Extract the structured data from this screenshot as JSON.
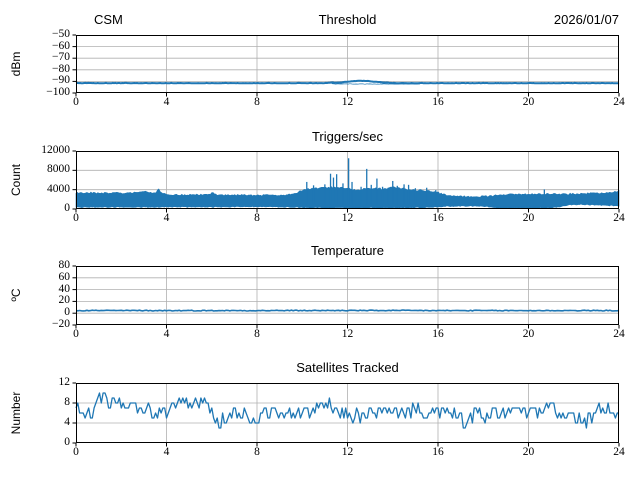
{
  "figure": {
    "background": "#ffffff"
  },
  "colors": {
    "line": "#1f77b4",
    "grid": "#b0b0b0",
    "frame": "#000000",
    "text": "#000000"
  },
  "chart_data": [
    {
      "type": "line",
      "title_left": "CSM",
      "title": "Threshold",
      "title_right": "2026/01/07",
      "ylabel": "dBm",
      "xlim": [
        0,
        24
      ],
      "ylim": [
        -100,
        -50
      ],
      "xticks": [
        0,
        4,
        8,
        12,
        16,
        20,
        24
      ],
      "yticks": [
        -100,
        -90,
        -80,
        -70,
        -60,
        -50
      ],
      "grid": true,
      "series": [
        {
          "name": "threshold-dbm",
          "width": 2,
          "noise": 0.18,
          "step": 0.06,
          "points": [
            [
              0,
              -91.5
            ],
            [
              10.9,
              -91.5
            ],
            [
              11.1,
              -91.3
            ],
            [
              11.3,
              -91.0
            ],
            [
              11.5,
              -91.1
            ],
            [
              11.7,
              -90.9
            ],
            [
              11.9,
              -90.5
            ],
            [
              12.1,
              -90.0
            ],
            [
              12.3,
              -89.7
            ],
            [
              12.5,
              -89.5
            ],
            [
              12.7,
              -89.6
            ],
            [
              12.9,
              -89.7
            ],
            [
              13.1,
              -90.0
            ],
            [
              13.3,
              -90.4
            ],
            [
              13.6,
              -90.9
            ],
            [
              13.9,
              -91.3
            ],
            [
              14.3,
              -91.5
            ],
            [
              24,
              -91.5
            ]
          ]
        },
        {
          "name": "threshold-undershoot",
          "width": 0.7,
          "noise": 0.18,
          "step": 0.06,
          "points": [
            [
              11.3,
              -92.1
            ],
            [
              13.0,
              -92.3
            ],
            [
              15.2,
              -92.2
            ]
          ]
        }
      ]
    },
    {
      "type": "line",
      "title": "Triggers/sec",
      "ylabel": "Count",
      "xlim": [
        0,
        24
      ],
      "ylim": [
        0,
        12000
      ],
      "xticks": [
        0,
        4,
        8,
        12,
        16,
        20,
        24
      ],
      "yticks": [
        0,
        4000,
        8000,
        12000
      ],
      "grid": true,
      "band": {
        "name": "triggers-noise-band",
        "noise_low": 90,
        "noise_high": 160,
        "step": 0.06,
        "points": [
          [
            0,
            400,
            3350
          ],
          [
            0.5,
            350,
            3400
          ],
          [
            1.0,
            400,
            3250
          ],
          [
            1.5,
            380,
            3350
          ],
          [
            2.0,
            420,
            3300
          ],
          [
            2.5,
            400,
            3400
          ],
          [
            3.0,
            380,
            3550
          ],
          [
            3.5,
            400,
            3300
          ],
          [
            3.65,
            420,
            4050
          ],
          [
            3.8,
            400,
            3150
          ],
          [
            4.3,
            450,
            2950
          ],
          [
            4.8,
            420,
            2900
          ],
          [
            5.3,
            450,
            2950
          ],
          [
            5.95,
            430,
            2950
          ],
          [
            6.05,
            400,
            3500
          ],
          [
            6.2,
            430,
            2950
          ],
          [
            6.8,
            450,
            2850
          ],
          [
            7.4,
            430,
            2900
          ],
          [
            8.0,
            460,
            2800
          ],
          [
            8.6,
            440,
            2850
          ],
          [
            9.2,
            420,
            2900
          ],
          [
            9.7,
            380,
            3100
          ],
          [
            10.0,
            300,
            3900
          ],
          [
            10.4,
            280,
            4200
          ],
          [
            10.8,
            260,
            4300
          ],
          [
            11.2,
            220,
            4500
          ],
          [
            11.6,
            260,
            4500
          ],
          [
            12.0,
            280,
            4300
          ],
          [
            12.4,
            250,
            3900
          ],
          [
            12.8,
            230,
            4200
          ],
          [
            13.2,
            260,
            4300
          ],
          [
            13.6,
            240,
            4100
          ],
          [
            14.0,
            230,
            4500
          ],
          [
            14.4,
            260,
            4300
          ],
          [
            14.8,
            280,
            3900
          ],
          [
            15.2,
            300,
            3900
          ],
          [
            15.6,
            350,
            3700
          ],
          [
            16.0,
            450,
            3400
          ],
          [
            16.4,
            550,
            2750
          ],
          [
            16.9,
            600,
            2650
          ],
          [
            17.4,
            620,
            2550
          ],
          [
            17.9,
            600,
            2600
          ],
          [
            18.4,
            400,
            2700
          ],
          [
            18.6,
            200,
            2950
          ],
          [
            19.2,
            180,
            3000
          ],
          [
            19.8,
            200,
            3050
          ],
          [
            20.4,
            220,
            3100
          ],
          [
            21.0,
            260,
            3150
          ],
          [
            21.4,
            500,
            3050
          ],
          [
            21.8,
            900,
            3100
          ],
          [
            22.3,
            950,
            3150
          ],
          [
            22.8,
            850,
            3250
          ],
          [
            23.3,
            750,
            3350
          ],
          [
            23.8,
            700,
            3500
          ],
          [
            24,
            650,
            3850
          ]
        ]
      },
      "spikes": [
        [
          10.2,
          5600
        ],
        [
          10.5,
          4900
        ],
        [
          11.0,
          5100
        ],
        [
          11.25,
          7300
        ],
        [
          11.38,
          6500
        ],
        [
          11.52,
          7200
        ],
        [
          11.8,
          5300
        ],
        [
          12.05,
          10500
        ],
        [
          12.2,
          5600
        ],
        [
          12.6,
          4600
        ],
        [
          12.85,
          8300
        ],
        [
          13.05,
          5000
        ],
        [
          13.3,
          6300
        ],
        [
          13.55,
          4600
        ],
        [
          13.8,
          4400
        ],
        [
          14.0,
          5800
        ],
        [
          14.2,
          4800
        ],
        [
          14.5,
          5100
        ],
        [
          14.7,
          5000
        ],
        [
          15.0,
          4300
        ],
        [
          15.5,
          4400
        ],
        [
          15.9,
          3900
        ],
        [
          20.7,
          4050
        ]
      ]
    },
    {
      "type": "line",
      "title": "Temperature",
      "ylabel": "ºC",
      "xlim": [
        0,
        24
      ],
      "ylim": [
        -20,
        80
      ],
      "xticks": [
        0,
        4,
        8,
        12,
        16,
        20,
        24
      ],
      "yticks": [
        -20,
        0,
        20,
        40,
        60,
        80
      ],
      "grid": true,
      "series": [
        {
          "name": "temperature-c",
          "width": 1.6,
          "noise": 0.7,
          "step": 0.08,
          "points": [
            [
              0,
              4.6
            ],
            [
              6,
              4.4
            ],
            [
              12,
              4.6
            ],
            [
              18,
              4.4
            ],
            [
              24,
              4.5
            ]
          ]
        }
      ]
    },
    {
      "type": "line",
      "title": "Satellites Tracked",
      "ylabel": "Number",
      "xlim": [
        0,
        24
      ],
      "ylim": [
        0,
        12
      ],
      "xticks": [
        0,
        4,
        8,
        12,
        16,
        20,
        24
      ],
      "yticks": [
        0,
        4,
        8,
        12
      ],
      "grid": true,
      "series": [
        {
          "name": "satellites-tracked",
          "width": 1.3,
          "noise": 1.4,
          "step": 0.08,
          "round": true,
          "clamp": [
            3,
            11
          ],
          "points": [
            [
              0,
              7
            ],
            [
              0.3,
              5
            ],
            [
              0.7,
              6
            ],
            [
              1.05,
              10
            ],
            [
              1.4,
              8
            ],
            [
              1.8,
              8
            ],
            [
              2.2,
              8
            ],
            [
              2.6,
              7
            ],
            [
              3.0,
              7
            ],
            [
              3.4,
              6
            ],
            [
              3.8,
              6
            ],
            [
              4.2,
              7
            ],
            [
              4.6,
              8
            ],
            [
              5.0,
              8
            ],
            [
              5.4,
              8
            ],
            [
              5.8,
              8
            ],
            [
              6.05,
              5
            ],
            [
              6.35,
              4
            ],
            [
              6.7,
              5
            ],
            [
              7.1,
              6
            ],
            [
              7.5,
              6
            ],
            [
              7.85,
              4
            ],
            [
              8.2,
              6
            ],
            [
              8.6,
              6
            ],
            [
              9.0,
              6
            ],
            [
              9.5,
              6
            ],
            [
              10.0,
              6
            ],
            [
              10.5,
              6
            ],
            [
              11.05,
              8
            ],
            [
              11.5,
              6
            ],
            [
              12.0,
              6
            ],
            [
              12.5,
              5
            ],
            [
              13.0,
              6
            ],
            [
              13.5,
              6
            ],
            [
              14.0,
              6
            ],
            [
              14.5,
              6
            ],
            [
              15.15,
              7
            ],
            [
              15.6,
              6
            ],
            [
              16.0,
              6
            ],
            [
              16.5,
              6
            ],
            [
              17.0,
              5
            ],
            [
              17.2,
              4
            ],
            [
              17.6,
              6
            ],
            [
              18.0,
              5
            ],
            [
              18.5,
              6
            ],
            [
              19.0,
              6
            ],
            [
              19.5,
              7
            ],
            [
              20.0,
              6
            ],
            [
              20.5,
              6
            ],
            [
              21.1,
              7
            ],
            [
              21.5,
              6
            ],
            [
              22.0,
              5
            ],
            [
              22.55,
              4
            ],
            [
              23.0,
              6
            ],
            [
              23.4,
              7
            ],
            [
              23.8,
              5
            ],
            [
              24,
              5
            ]
          ]
        }
      ]
    }
  ]
}
